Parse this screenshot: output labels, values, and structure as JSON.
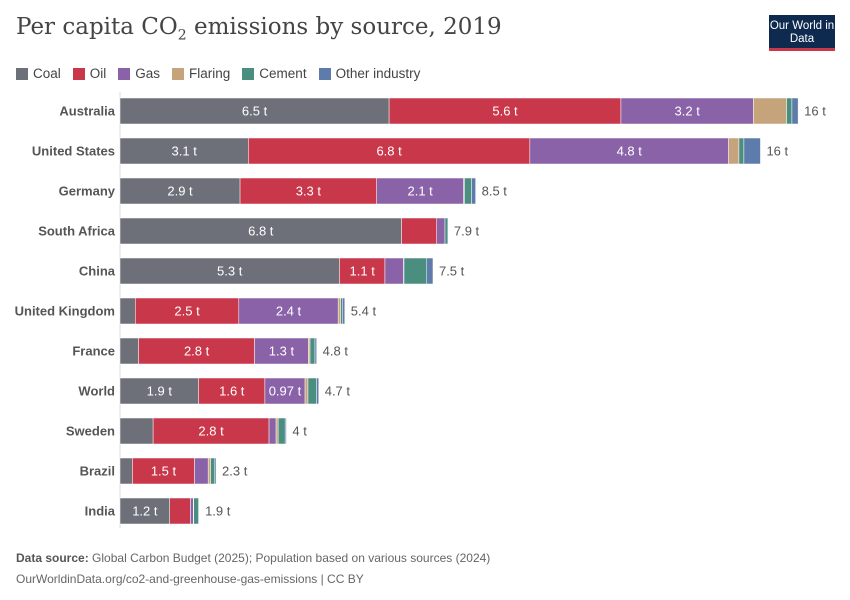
{
  "header": {
    "title": "Per capita CO",
    "title_sub": "2",
    "title_rest": " emissions by source, 2019",
    "logo": "Our World in Data"
  },
  "footer": {
    "source_label": "Data source:",
    "source": "Global Carbon Budget (2025); Population based on various sources (2024)",
    "url": "OurWorldinData.org/co2-and-greenhouse-gas-emissions | CC BY"
  },
  "chart_data": {
    "type": "bar",
    "orientation": "horizontal",
    "stacked": true,
    "unit": "t",
    "legend": "top-left",
    "grid": false,
    "series_names": [
      "Coal",
      "Oil",
      "Gas",
      "Flaring",
      "Cement",
      "Other industry"
    ],
    "colors": [
      "#6e7079",
      "#c8374a",
      "#8a62a8",
      "#c5a37b",
      "#4a8e80",
      "#5e7cab"
    ],
    "categories": [
      "Australia",
      "United States",
      "Germany",
      "South Africa",
      "China",
      "United Kingdom",
      "France",
      "World",
      "Sweden",
      "Brazil",
      "India"
    ],
    "values": [
      [
        6.5,
        5.6,
        3.2,
        0.8,
        0.13,
        0.15
      ],
      [
        3.1,
        6.8,
        4.8,
        0.25,
        0.12,
        0.4
      ],
      [
        2.9,
        3.3,
        2.1,
        0.02,
        0.17,
        0.1
      ],
      [
        6.8,
        0.85,
        0.2,
        0,
        0.07,
        0
      ],
      [
        5.3,
        1.1,
        0.45,
        0.01,
        0.55,
        0.15
      ],
      [
        0.37,
        2.5,
        2.4,
        0.06,
        0.04,
        0.06
      ],
      [
        0.45,
        2.8,
        1.3,
        0.04,
        0.12,
        0.04
      ],
      [
        1.9,
        1.6,
        0.97,
        0.07,
        0.21,
        0.05
      ],
      [
        0.8,
        2.8,
        0.17,
        0.05,
        0.17,
        0.03
      ],
      [
        0.3,
        1.5,
        0.33,
        0.06,
        0.1,
        0.03
      ],
      [
        1.2,
        0.5,
        0.07,
        0.01,
        0.12,
        0.01
      ]
    ],
    "segment_labels": [
      [
        "6.5 t",
        "5.6 t",
        "3.2 t",
        "",
        "",
        ""
      ],
      [
        "3.1 t",
        "6.8 t",
        "4.8 t",
        "",
        "",
        ""
      ],
      [
        "2.9 t",
        "3.3 t",
        "2.1 t",
        "",
        "",
        ""
      ],
      [
        "6.8 t",
        "",
        "",
        "",
        "",
        ""
      ],
      [
        "5.3 t",
        "1.1 t",
        "",
        "",
        "",
        ""
      ],
      [
        "",
        "2.5 t",
        "2.4 t",
        "",
        "",
        ""
      ],
      [
        "",
        "2.8 t",
        "1.3 t",
        "",
        "",
        ""
      ],
      [
        "1.9 t",
        "1.6 t",
        "0.97 t",
        "",
        "",
        ""
      ],
      [
        "",
        "2.8 t",
        "",
        "",
        "",
        ""
      ],
      [
        "",
        "1.5 t",
        "",
        "",
        "",
        ""
      ],
      [
        "1.2 t",
        "",
        "",
        "",
        "",
        ""
      ]
    ],
    "total_labels": [
      "16 t",
      "16 t",
      "8.5 t",
      "7.9 t",
      "7.5 t",
      "5.4 t",
      "4.8 t",
      "4.7 t",
      "4 t",
      "2.3 t",
      "1.9 t"
    ]
  }
}
